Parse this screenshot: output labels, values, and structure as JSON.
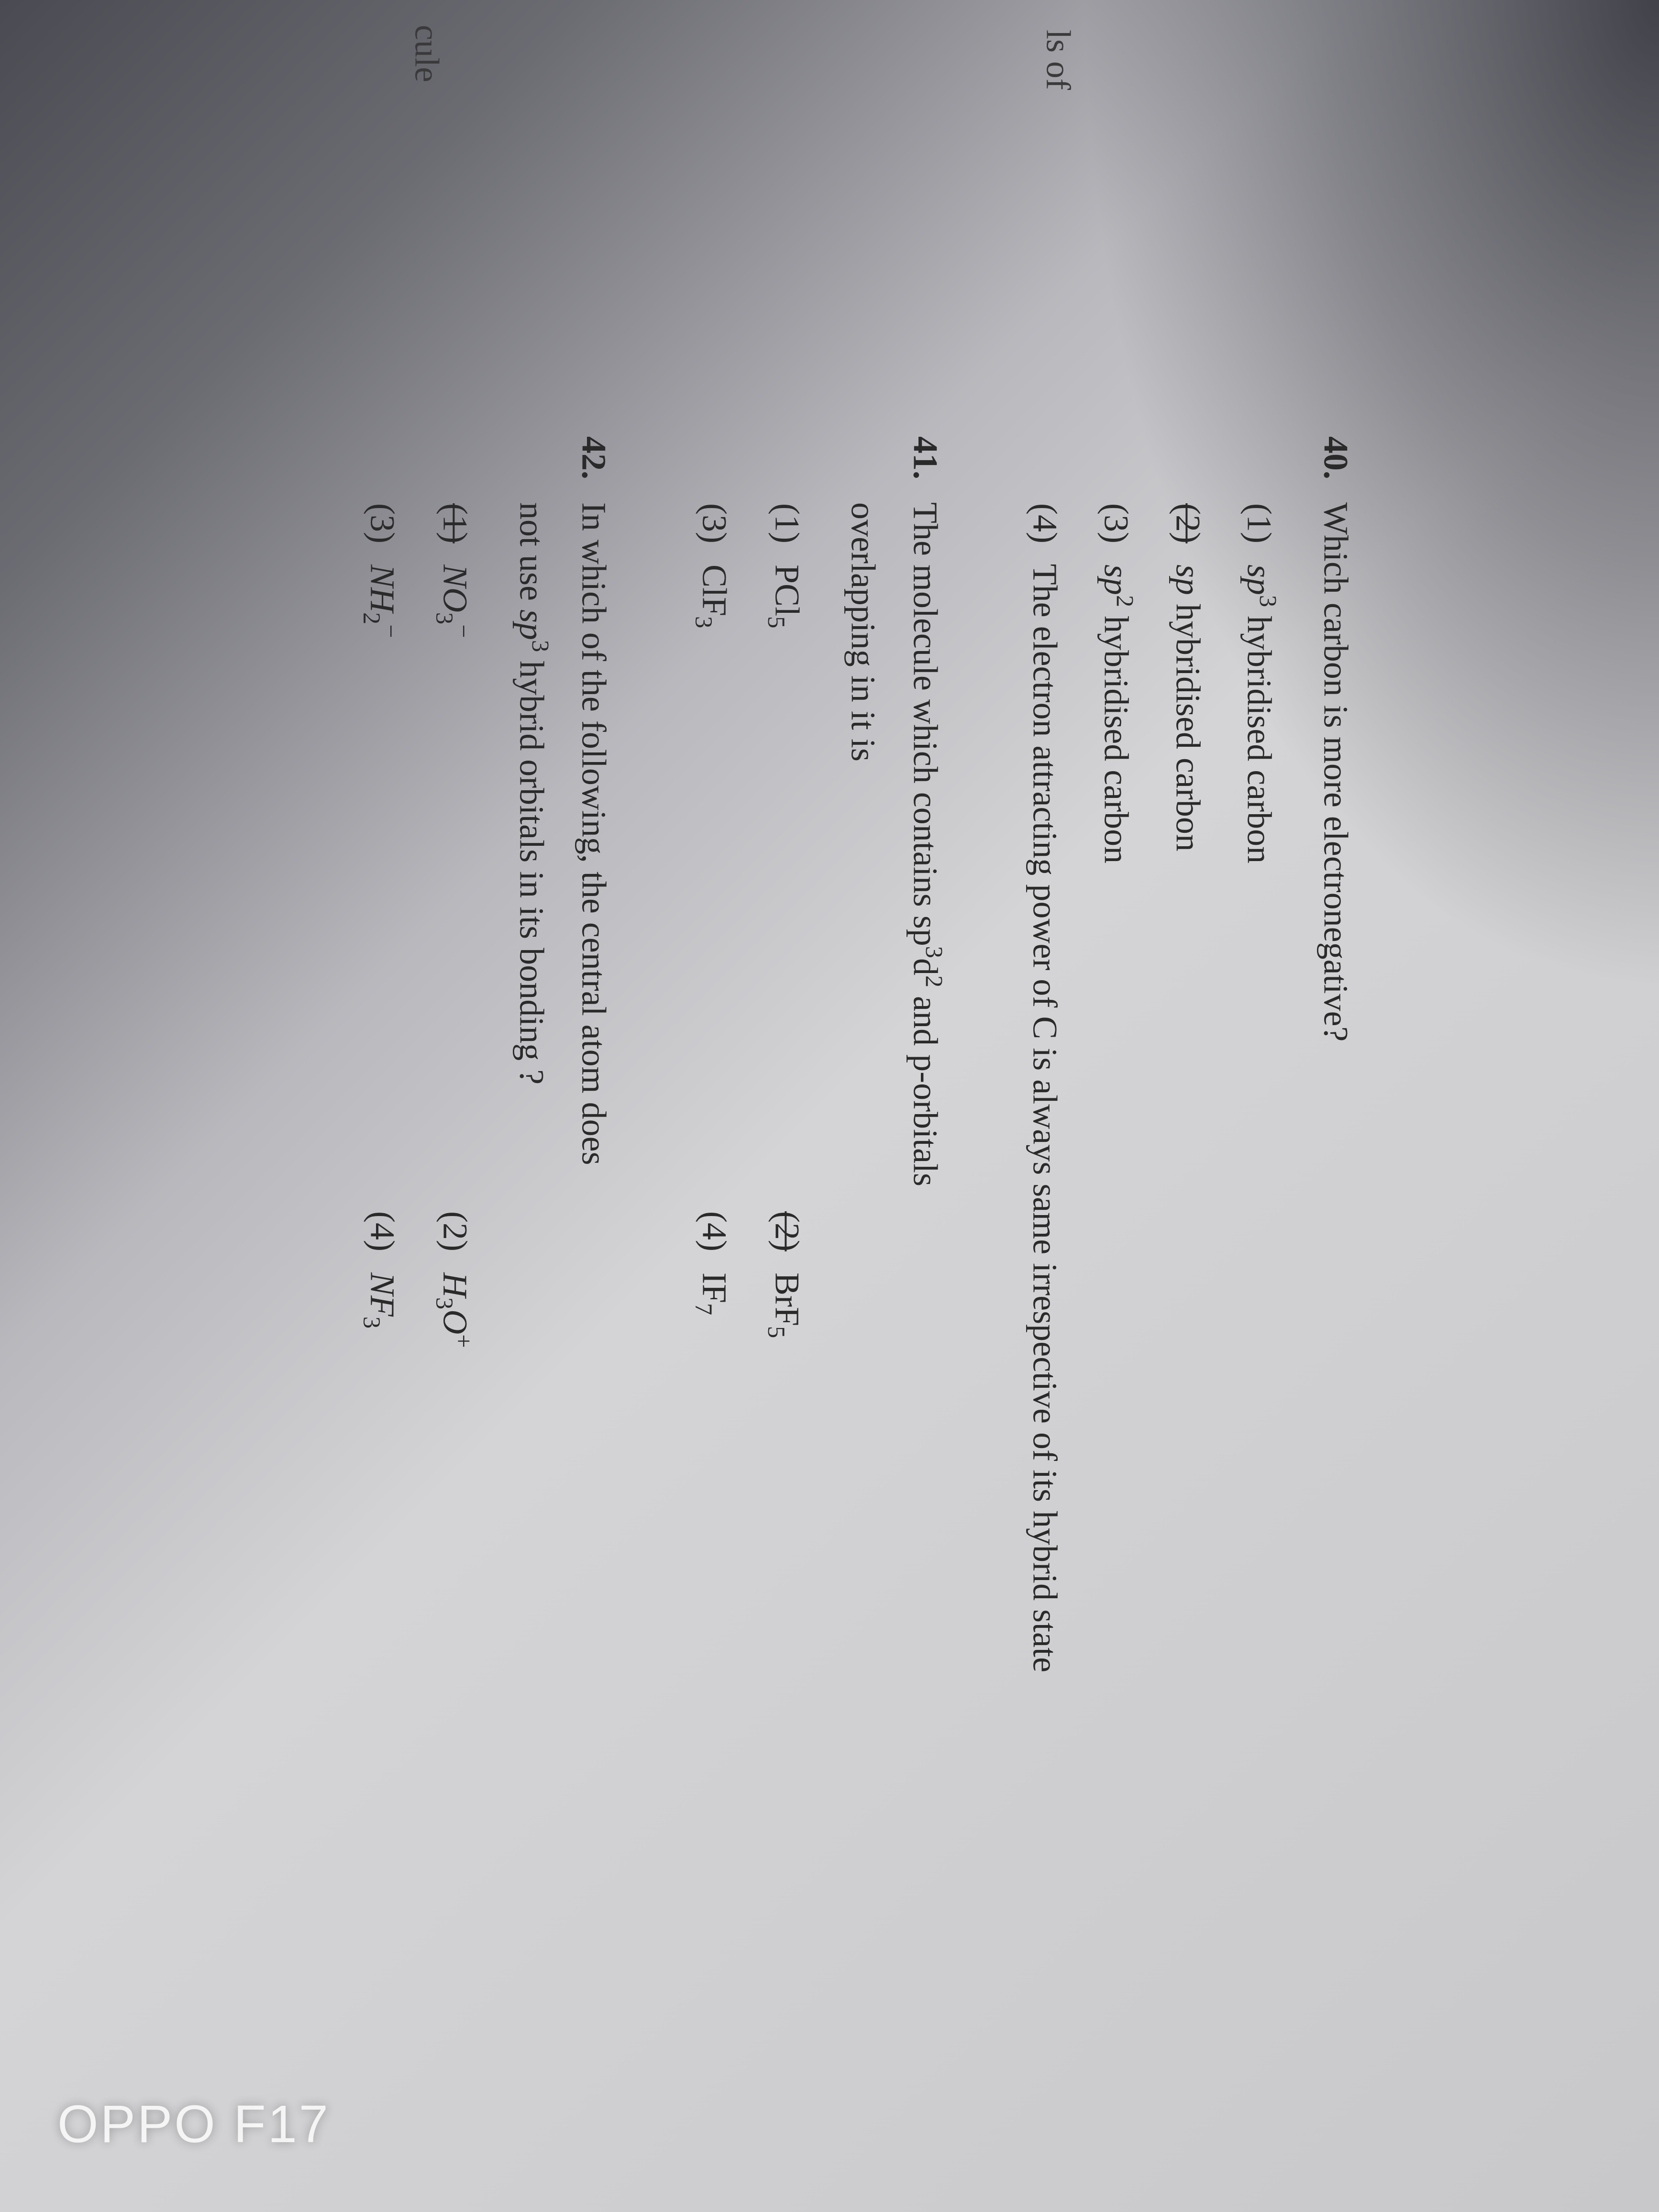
{
  "margin": {
    "ls_of": "ls of",
    "cule": "cule"
  },
  "questions": [
    {
      "number": "40.",
      "text": "Which carbon is more electronegative?",
      "options": [
        {
          "num": "(1)",
          "text_prefix": "sp",
          "sup": "3",
          "text_suffix": " hybridised carbon"
        },
        {
          "num": "(2)",
          "text_prefix": "sp",
          "sup": "",
          "text_suffix": " hybridised carbon"
        },
        {
          "num": "(3)",
          "text_prefix": "sp",
          "sup": "2",
          "text_suffix": " hybridised carbon"
        },
        {
          "num": "(4)",
          "text_full": "The electron attracting power of C is always same irrespective of its hybrid state"
        }
      ]
    },
    {
      "number": "41.",
      "text_line1": "The molecule which contains sp",
      "text_sup1": "3",
      "text_mid1": "d",
      "text_sup2": "2",
      "text_line1_end": " and p-orbitals",
      "text_line2": "overlapping in it is",
      "options_paired": [
        [
          {
            "num": "(1)",
            "formula": "PCl",
            "sub": "5"
          },
          {
            "num": "(2)",
            "formula": "BrF",
            "sub": "5"
          }
        ],
        [
          {
            "num": "(3)",
            "formula": "ClF",
            "sub": "3"
          },
          {
            "num": "(4)",
            "formula": "IF",
            "sub": "7"
          }
        ]
      ]
    },
    {
      "number": "42.",
      "text_line1": "In which of the following, the central atom does",
      "text_line2_pre": "not use ",
      "text_line2_sp": "sp",
      "text_line2_sup": "3",
      "text_line2_post": " hybrid orbitals in its bonding ?",
      "options_paired": [
        [
          {
            "num": "(1)",
            "formula": "NO",
            "sub": "3",
            "sup_after": "−"
          },
          {
            "num": "(2)",
            "formula": "H",
            "sub": "3",
            "formula2": "O",
            "sup_after": "+"
          }
        ],
        [
          {
            "num": "(3)",
            "formula": "NH",
            "sub": "2",
            "sup_after": "−"
          },
          {
            "num": "(4)",
            "formula": "NF",
            "sub": "3"
          }
        ]
      ]
    }
  ],
  "watermark": "OPPO F17"
}
